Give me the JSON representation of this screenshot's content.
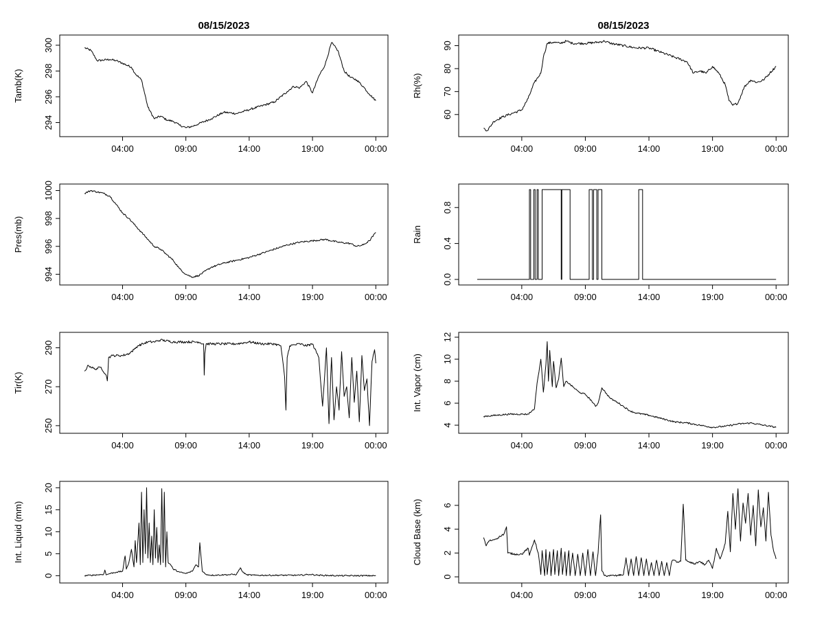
{
  "figure": {
    "date_label": "08/15/2023",
    "x_ticks": [
      "04:00",
      "09:00",
      "14:00",
      "19:00",
      "00:00"
    ]
  },
  "chart_data": [
    {
      "type": "line",
      "id": "tamb",
      "title": "08/15/2023",
      "xlabel": "",
      "ylabel": "Tamb(K)",
      "xlim": [
        0,
        24
      ],
      "ylim": [
        293.2,
        300.5
      ],
      "y_ticks": [
        294,
        296,
        298,
        300
      ],
      "y_tick_labels": [
        "294",
        "296",
        "298",
        "300"
      ],
      "x_ticks_hours": [
        4,
        9,
        14,
        19,
        24
      ],
      "x_tick_labels": [
        "04:00",
        "09:00",
        "14:00",
        "19:00",
        "00:00"
      ],
      "noise": 0.08,
      "x": [
        1.0,
        1.5,
        2.0,
        3.0,
        3.5,
        4.0,
        4.7,
        5.0,
        5.5,
        6.0,
        6.5,
        7.0,
        7.5,
        8.0,
        8.5,
        9.0,
        9.5,
        10.0,
        11.0,
        12.0,
        13.0,
        14.0,
        15.0,
        16.0,
        17.0,
        17.5,
        18.0,
        18.5,
        19.0,
        19.5,
        20.0,
        20.5,
        21.0,
        21.5,
        22.0,
        22.5,
        23.0,
        23.5,
        24.0
      ],
      "y": [
        299.8,
        299.6,
        298.8,
        298.9,
        298.8,
        298.6,
        298.3,
        297.8,
        297.3,
        295.2,
        294.3,
        294.5,
        294.2,
        294.1,
        293.8,
        293.6,
        293.7,
        293.9,
        294.3,
        294.8,
        294.7,
        295.0,
        295.3,
        295.6,
        296.4,
        296.8,
        296.7,
        297.2,
        296.3,
        297.6,
        298.5,
        300.2,
        299.6,
        298.0,
        297.5,
        297.3,
        296.8,
        296.2,
        295.7
      ]
    },
    {
      "type": "line",
      "id": "rh",
      "title": "08/15/2023",
      "xlabel": "",
      "ylabel": "Rh(%)",
      "xlim": [
        0,
        24
      ],
      "ylim": [
        52,
        93
      ],
      "y_ticks": [
        60,
        70,
        80,
        90
      ],
      "y_tick_labels": [
        "60",
        "70",
        "80",
        "90"
      ],
      "x_ticks_hours": [
        4,
        9,
        14,
        19,
        24
      ],
      "x_tick_labels": [
        "04:00",
        "09:00",
        "14:00",
        "19:00",
        "00:00"
      ],
      "noise": 0.5,
      "x": [
        1.0,
        1.3,
        1.8,
        2.5,
        3.0,
        3.5,
        4.0,
        4.5,
        5.0,
        5.5,
        5.7,
        6.0,
        6.5,
        7.0,
        7.5,
        8.0,
        9.0,
        10.0,
        10.5,
        11.0,
        12.0,
        13.0,
        14.0,
        15.0,
        16.0,
        17.0,
        17.5,
        18.0,
        18.5,
        19.0,
        19.5,
        20.0,
        20.3,
        20.6,
        21.0,
        21.5,
        22.0,
        22.5,
        23.0,
        23.5,
        24.0
      ],
      "y": [
        54.0,
        53.0,
        57.0,
        59.0,
        60.0,
        61.0,
        62.0,
        67.0,
        74.0,
        78.0,
        85.0,
        91.0,
        91.5,
        91.0,
        92.0,
        91.0,
        91.0,
        91.5,
        92.0,
        91.0,
        90.0,
        89.0,
        89.0,
        87.0,
        85.0,
        83.0,
        78.0,
        79.0,
        78.0,
        81.0,
        78.0,
        73.0,
        66.0,
        64.0,
        65.0,
        72.0,
        75.0,
        74.0,
        75.0,
        78.0,
        81.0
      ]
    },
    {
      "type": "line",
      "id": "pres",
      "title": "",
      "xlabel": "",
      "ylabel": "Pres(mb)",
      "xlim": [
        0,
        24
      ],
      "ylim": [
        993.5,
        1000.2
      ],
      "y_ticks": [
        994,
        996,
        998,
        1000
      ],
      "y_tick_labels": [
        "994",
        "996",
        "998",
        "1000"
      ],
      "x_ticks_hours": [
        4,
        9,
        14,
        19,
        24
      ],
      "x_tick_labels": [
        "04:00",
        "09:00",
        "14:00",
        "19:00",
        "00:00"
      ],
      "noise": 0.06,
      "x": [
        1.0,
        1.5,
        2.0,
        2.5,
        3.0,
        3.5,
        4.0,
        4.5,
        5.0,
        5.5,
        6.0,
        6.5,
        7.0,
        7.5,
        8.0,
        8.5,
        9.0,
        9.5,
        10.0,
        11.0,
        12.0,
        13.0,
        14.0,
        15.0,
        16.0,
        17.0,
        18.0,
        19.0,
        20.0,
        21.0,
        22.0,
        22.5,
        23.0,
        23.5,
        24.0
      ],
      "y": [
        999.8,
        1000.0,
        999.9,
        999.8,
        999.6,
        999.0,
        998.4,
        998.0,
        997.5,
        997.0,
        996.5,
        996.0,
        995.8,
        995.4,
        995.0,
        994.4,
        994.0,
        993.8,
        993.9,
        994.5,
        994.8,
        995.0,
        995.2,
        995.5,
        995.8,
        996.1,
        996.3,
        996.4,
        996.5,
        996.3,
        996.2,
        996.0,
        996.1,
        996.4,
        997.0
      ]
    },
    {
      "type": "line",
      "id": "rain",
      "title": "",
      "xlabel": "",
      "ylabel": "Rain",
      "xlim": [
        0,
        24
      ],
      "ylim": [
        -0.02,
        1.02
      ],
      "y_ticks": [
        0.0,
        0.4,
        0.8
      ],
      "y_tick_labels": [
        "0.0",
        "0.4",
        "0.8"
      ],
      "x_ticks_hours": [
        4,
        9,
        14,
        19,
        24
      ],
      "x_tick_labels": [
        "04:00",
        "09:00",
        "14:00",
        "19:00",
        "00:00"
      ],
      "step": true,
      "x": [
        0.5,
        4.6,
        4.6,
        4.7,
        4.7,
        4.95,
        4.95,
        5.05,
        5.05,
        5.2,
        5.2,
        5.3,
        5.3,
        5.6,
        5.6,
        7.1,
        7.1,
        7.15,
        7.15,
        7.8,
        7.8,
        9.3,
        9.3,
        9.55,
        9.55,
        9.65,
        9.65,
        9.9,
        9.9,
        10.0,
        10.0,
        10.3,
        10.3,
        13.2,
        13.2,
        13.5,
        13.5,
        24.0
      ],
      "y": [
        0,
        0,
        1,
        1,
        0,
        0,
        1,
        1,
        0,
        0,
        1,
        1,
        0,
        0,
        1,
        1,
        0,
        0,
        1,
        1,
        0,
        0,
        1,
        1,
        0,
        0,
        1,
        1,
        0,
        0,
        1,
        1,
        0,
        0,
        1,
        1,
        0,
        0
      ]
    },
    {
      "type": "line",
      "id": "tir",
      "title": "",
      "xlabel": "",
      "ylabel": "Tir(K)",
      "xlim": [
        0,
        24
      ],
      "ylim": [
        248,
        296
      ],
      "y_ticks": [
        250,
        270,
        290
      ],
      "y_tick_labels": [
        "250",
        "270",
        "290"
      ],
      "x_ticks_hours": [
        4,
        9,
        14,
        19,
        24
      ],
      "x_tick_labels": [
        "04:00",
        "09:00",
        "14:00",
        "19:00",
        "00:00"
      ],
      "noise": 0.6,
      "x": [
        1.0,
        1.3,
        1.8,
        2.3,
        2.7,
        2.8,
        2.9,
        3.2,
        4.0,
        4.5,
        4.9,
        5.2,
        5.6,
        6.0,
        6.5,
        7.0,
        8.0,
        9.0,
        10.0,
        10.4,
        10.45,
        10.5,
        10.6,
        11.0,
        12.0,
        13.0,
        14.0,
        15.0,
        16.0,
        16.5,
        16.8,
        16.9,
        17.0,
        17.2,
        18.0,
        18.5,
        19.0,
        19.5,
        19.8,
        20.1,
        20.3,
        20.5,
        20.7,
        20.9,
        21.1,
        21.3,
        21.5,
        21.7,
        21.9,
        22.1,
        22.3,
        22.5,
        22.7,
        22.9,
        23.1,
        23.3,
        23.5,
        23.7,
        23.9,
        24.0
      ],
      "y": [
        278,
        281,
        279,
        280,
        276,
        273,
        285,
        286,
        286,
        287,
        289,
        291,
        292,
        293,
        293,
        294,
        293,
        293,
        293,
        292,
        276,
        287,
        292,
        292,
        292,
        292,
        293,
        292,
        292,
        291,
        275,
        258,
        285,
        291,
        292,
        291,
        292,
        285,
        260,
        290,
        251,
        285,
        253,
        270,
        258,
        288,
        265,
        270,
        254,
        285,
        262,
        278,
        252,
        286,
        268,
        274,
        250,
        283,
        289,
        282
      ]
    },
    {
      "type": "line",
      "id": "vapor",
      "title": "",
      "xlabel": "",
      "ylabel": "Int. Vapor (cm)",
      "xlim": [
        0,
        24
      ],
      "ylim": [
        3.6,
        12.1
      ],
      "y_ticks": [
        4,
        6,
        8,
        10,
        12
      ],
      "y_tick_labels": [
        "4",
        "6",
        "8",
        "10",
        "12"
      ],
      "x_ticks_hours": [
        4,
        9,
        14,
        19,
        24
      ],
      "x_tick_labels": [
        "04:00",
        "09:00",
        "14:00",
        "19:00",
        "00:00"
      ],
      "noise": 0.07,
      "x": [
        1.0,
        2.0,
        3.0,
        4.0,
        4.5,
        4.8,
        5.0,
        5.2,
        5.3,
        5.5,
        5.7,
        5.9,
        6.0,
        6.1,
        6.2,
        6.4,
        6.5,
        6.7,
        6.9,
        7.1,
        7.3,
        7.5,
        8.0,
        8.5,
        9.0,
        9.5,
        9.8,
        10.0,
        10.3,
        10.7,
        11.0,
        11.5,
        12.0,
        12.5,
        13.0,
        14.0,
        15.0,
        16.0,
        17.0,
        18.0,
        19.0,
        20.0,
        21.0,
        22.0,
        23.0,
        24.0
      ],
      "y": [
        4.8,
        4.9,
        5.0,
        5.0,
        5.0,
        5.3,
        5.5,
        7.8,
        8.5,
        10.0,
        7.0,
        9.5,
        11.6,
        8.0,
        10.8,
        7.5,
        9.8,
        7.4,
        8.2,
        10.1,
        7.5,
        8.0,
        7.5,
        7.0,
        6.8,
        6.2,
        5.7,
        6.0,
        7.4,
        6.8,
        6.4,
        6.1,
        5.7,
        5.3,
        5.1,
        4.9,
        4.6,
        4.3,
        4.2,
        4.0,
        3.8,
        3.9,
        4.1,
        4.2,
        4.0,
        3.8
      ]
    },
    {
      "type": "line",
      "id": "liquid",
      "title": "",
      "xlabel": "",
      "ylabel": "Int. Liquid (mm)",
      "xlim": [
        0,
        24
      ],
      "ylim": [
        -0.8,
        20.6
      ],
      "y_ticks": [
        0,
        5,
        10,
        15,
        20
      ],
      "y_tick_labels": [
        "0",
        "5",
        "10",
        "15",
        "20"
      ],
      "x_ticks_hours": [
        4,
        9,
        14,
        19,
        24
      ],
      "x_tick_labels": [
        "04:00",
        "09:00",
        "14:00",
        "19:00",
        "00:00"
      ],
      "noise": 0.15,
      "x": [
        1.0,
        2.0,
        2.5,
        2.6,
        2.7,
        3.0,
        3.5,
        4.0,
        4.2,
        4.3,
        4.5,
        4.7,
        4.9,
        5.0,
        5.1,
        5.3,
        5.4,
        5.5,
        5.6,
        5.7,
        5.8,
        5.9,
        6.0,
        6.1,
        6.2,
        6.3,
        6.4,
        6.5,
        6.6,
        6.7,
        6.8,
        6.9,
        7.0,
        7.1,
        7.2,
        7.3,
        7.4,
        7.5,
        7.6,
        7.8,
        8.0,
        8.5,
        9.0,
        9.5,
        9.8,
        10.0,
        10.1,
        10.3,
        10.6,
        11.0,
        12.0,
        13.0,
        13.3,
        13.5,
        13.8,
        14.5,
        16.0,
        18.0,
        18.8,
        19.5,
        21.0,
        24.0
      ],
      "y": [
        0.0,
        0.2,
        0.3,
        1.3,
        0.2,
        0.5,
        0.8,
        1.0,
        4.5,
        1.5,
        3.0,
        6.0,
        2.0,
        8.0,
        3.0,
        12.0,
        2.5,
        19.0,
        3.0,
        15.0,
        5.0,
        20.0,
        4.0,
        12.0,
        3.0,
        9.0,
        2.5,
        15.0,
        4.0,
        11.0,
        3.0,
        7.0,
        2.5,
        19.8,
        3.0,
        19.0,
        2.0,
        10.0,
        3.0,
        2.5,
        1.5,
        0.8,
        0.5,
        1.0,
        2.5,
        2.0,
        7.5,
        1.0,
        0.3,
        0.1,
        0.2,
        0.3,
        1.8,
        0.8,
        0.2,
        0.1,
        0.1,
        0.1,
        0.3,
        0.1,
        0.0,
        0.0
      ]
    },
    {
      "type": "line",
      "id": "cloudbase",
      "title": "",
      "xlabel": "",
      "ylabel": "Cloud Base (km)",
      "xlim": [
        0,
        24
      ],
      "ylim": [
        -0.2,
        7.7
      ],
      "y_ticks": [
        0,
        2,
        4,
        6
      ],
      "y_tick_labels": [
        "0",
        "2",
        "4",
        "6"
      ],
      "x_ticks_hours": [
        4,
        9,
        14,
        19,
        24
      ],
      "x_tick_labels": [
        "04:00",
        "09:00",
        "14:00",
        "19:00",
        "00:00"
      ],
      "noise": 0.08,
      "x": [
        1.0,
        1.2,
        1.4,
        1.7,
        2.0,
        2.3,
        2.6,
        2.8,
        2.9,
        3.5,
        4.0,
        4.5,
        4.6,
        4.8,
        5.0,
        5.3,
        5.5,
        5.6,
        5.8,
        5.9,
        6.0,
        6.2,
        6.3,
        6.5,
        6.6,
        6.8,
        6.9,
        7.1,
        7.2,
        7.4,
        7.5,
        7.7,
        7.8,
        8.0,
        8.2,
        8.4,
        8.6,
        8.8,
        9.0,
        9.2,
        9.4,
        9.6,
        9.8,
        10.0,
        10.2,
        10.3,
        10.5,
        11.0,
        11.5,
        12.0,
        12.2,
        12.4,
        12.6,
        12.8,
        13.0,
        13.2,
        13.4,
        13.6,
        13.8,
        14.0,
        14.2,
        14.4,
        14.6,
        14.8,
        15.0,
        15.2,
        15.4,
        15.6,
        15.8,
        16.0,
        16.2,
        16.5,
        16.7,
        16.9,
        17.2,
        17.6,
        18.0,
        18.4,
        18.7,
        19.0,
        19.3,
        19.6,
        20.0,
        20.2,
        20.4,
        20.6,
        20.8,
        21.0,
        21.2,
        21.4,
        21.6,
        21.8,
        22.0,
        22.2,
        22.4,
        22.6,
        22.8,
        23.0,
        23.2,
        23.4,
        23.6,
        23.8,
        24.0
      ],
      "y": [
        3.3,
        2.6,
        3.0,
        3.1,
        3.2,
        3.4,
        3.6,
        4.2,
        2.0,
        1.9,
        1.9,
        2.4,
        1.8,
        2.5,
        3.1,
        2.0,
        0.2,
        2.2,
        0.1,
        2.3,
        0.2,
        2.1,
        0.1,
        2.3,
        0.2,
        2.2,
        0.1,
        2.4,
        0.2,
        2.1,
        0.1,
        2.2,
        0.1,
        2.0,
        0.1,
        1.9,
        0.1,
        2.0,
        0.1,
        2.3,
        0.1,
        2.1,
        0.1,
        2.0,
        5.2,
        0.5,
        0.1,
        0.1,
        0.1,
        0.2,
        1.6,
        0.1,
        1.5,
        0.1,
        1.7,
        0.1,
        1.6,
        0.1,
        1.5,
        0.1,
        1.2,
        0.1,
        1.4,
        0.1,
        1.3,
        0.1,
        1.2,
        0.1,
        1.3,
        1.4,
        1.2,
        1.3,
        6.1,
        1.4,
        1.2,
        1.1,
        1.3,
        1.0,
        1.4,
        0.7,
        2.4,
        1.5,
        2.8,
        5.5,
        2.1,
        7.0,
        4.0,
        7.4,
        3.0,
        6.2,
        4.5,
        7.0,
        3.5,
        6.0,
        2.6,
        7.3,
        4.2,
        5.8,
        3.0,
        7.1,
        3.5,
        2.2,
        1.5
      ]
    }
  ]
}
